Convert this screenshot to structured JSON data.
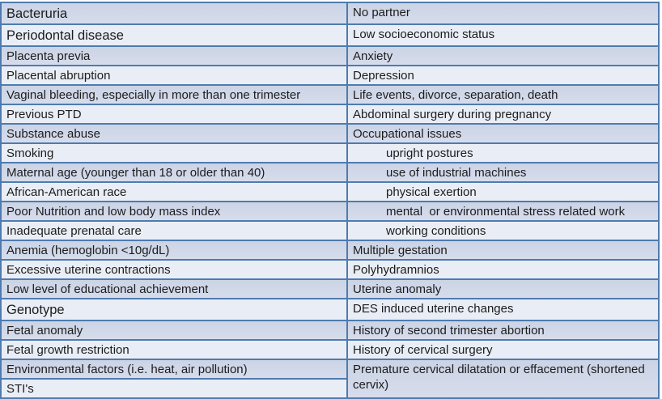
{
  "palette": {
    "band_blue_top": "#cbd4e5",
    "band_blue_bottom": "#d6dcec",
    "band_light": "#e9eef6",
    "border_inner": "#4f7bae",
    "border_outer": "#2f5a8b",
    "text": "#1c1c1c"
  },
  "table": {
    "description": "risk-factors-table",
    "rows": [
      {
        "band": "blue",
        "tall": true,
        "left": {
          "text": "Bacteruria",
          "large": true
        },
        "right": {
          "text": "No partner"
        }
      },
      {
        "band": "light",
        "tall": true,
        "left": {
          "text": "Periodontal disease",
          "large": true
        },
        "right": {
          "text": "Low socioeconomic status"
        }
      },
      {
        "band": "blue",
        "left": {
          "text": "Placenta previa"
        },
        "right": {
          "text": "Anxiety"
        }
      },
      {
        "band": "light",
        "left": {
          "text": "Placental abruption"
        },
        "right": {
          "text": "Depression"
        }
      },
      {
        "band": "blue",
        "left": {
          "text": "Vaginal bleeding, especially in more than one trimester"
        },
        "right": {
          "text": "Life events, divorce, separation, death"
        }
      },
      {
        "band": "light",
        "left": {
          "text": "Previous PTD"
        },
        "right": {
          "text": "Abdominal surgery during pregnancy"
        }
      },
      {
        "band": "blue",
        "left": {
          "text": "Substance abuse"
        },
        "right": {
          "text": "Occupational issues"
        }
      },
      {
        "band": "light",
        "left": {
          "text": "Smoking"
        },
        "right": {
          "text": "upright postures",
          "indent": true
        }
      },
      {
        "band": "blue",
        "left": {
          "text": "Maternal age (younger than 18 or older than 40)"
        },
        "right": {
          "text": "use of industrial machines",
          "indent": true
        }
      },
      {
        "band": "light",
        "left": {
          "text": "African-American race"
        },
        "right": {
          "text": "physical exertion",
          "indent": true
        }
      },
      {
        "band": "blue",
        "left": {
          "text": "Poor Nutrition and low body mass index"
        },
        "right": {
          "text": "mental  or environmental stress related work",
          "indent": true
        }
      },
      {
        "band": "light",
        "left": {
          "text": "Inadequate prenatal care"
        },
        "right": {
          "text": "working conditions",
          "indent": true
        }
      },
      {
        "band": "blue",
        "left": {
          "text": "Anemia (hemoglobin <10g/dL)"
        },
        "right": {
          "text": "Multiple gestation"
        }
      },
      {
        "band": "light",
        "left": {
          "text": "Excessive uterine contractions"
        },
        "right": {
          "text": "Polyhydramnios"
        }
      },
      {
        "band": "blue",
        "left": {
          "text": "Low level of educational achievement"
        },
        "right": {
          "text": "Uterine anomaly"
        }
      },
      {
        "band": "light",
        "tall": true,
        "left": {
          "text": "Genotype",
          "large": true
        },
        "right": {
          "text": "DES induced uterine changes"
        }
      },
      {
        "band": "blue",
        "left": {
          "text": "Fetal anomaly"
        },
        "right": {
          "text": "History of second trimester abortion"
        }
      },
      {
        "band": "light",
        "left": {
          "text": "Fetal growth restriction"
        },
        "right": {
          "text": "History of cervical surgery"
        }
      },
      {
        "band": "blue",
        "left": {
          "text": "Environmental factors (i.e. heat, air pollution)"
        },
        "right": {
          "text": "Premature cervical dilatation or effacement (shortened cervix)",
          "rowspan": 2,
          "band": "blue"
        }
      },
      {
        "band": "light",
        "left": {
          "text": "STI's"
        },
        "right": null
      }
    ]
  }
}
